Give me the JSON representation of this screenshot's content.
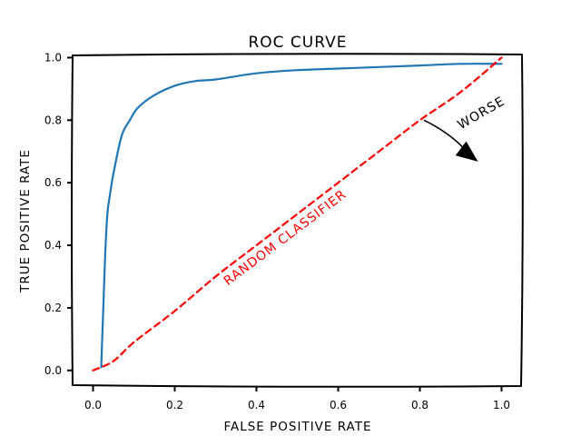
{
  "chart_data": {
    "type": "line",
    "title": "ROC CURVE",
    "xlabel": "FALSE POSITIVE RATE",
    "ylabel": "TRUE POSITIVE RATE",
    "xlim": [
      -0.05,
      1.05
    ],
    "ylim": [
      -0.05,
      1.01
    ],
    "grid": false,
    "x_ticks": [
      0.0,
      0.2,
      0.4,
      0.6,
      0.8,
      1.0
    ],
    "x_tick_labels": [
      "0.0",
      "0.2",
      "0.4",
      "0.6",
      "0.8",
      "1.0"
    ],
    "y_ticks": [
      0.0,
      0.2,
      0.4,
      0.6,
      0.8,
      1.0
    ],
    "y_tick_labels": [
      "0.0",
      "0.2",
      "0.4",
      "0.6",
      "0.8",
      "1.0"
    ],
    "series": [
      {
        "style": "solid",
        "color": "#1f77b4",
        "x": [
          0.02,
          0.025,
          0.03,
          0.035,
          0.04,
          0.05,
          0.07,
          0.09,
          0.11,
          0.15,
          0.2,
          0.25,
          0.3,
          0.4,
          0.5,
          0.6,
          0.7,
          0.8,
          0.9,
          1.0
        ],
        "y": [
          0.01,
          0.2,
          0.38,
          0.5,
          0.55,
          0.63,
          0.75,
          0.8,
          0.84,
          0.88,
          0.91,
          0.925,
          0.93,
          0.95,
          0.96,
          0.965,
          0.97,
          0.975,
          0.98,
          0.98
        ]
      },
      {
        "style": "dashed",
        "color": "#ff0000",
        "x": [
          0.0,
          0.05,
          0.1,
          0.2,
          0.3,
          0.4,
          0.5,
          0.6,
          0.7,
          0.8,
          0.9,
          1.0
        ],
        "y": [
          0.0,
          0.03,
          0.09,
          0.19,
          0.3,
          0.4,
          0.5,
          0.6,
          0.7,
          0.8,
          0.89,
          1.0
        ]
      }
    ],
    "annotations": [
      {
        "text": "RANDOM CLASSIFIER",
        "x": 0.33,
        "y": 0.27,
        "color": "#ff0000",
        "rotation_deg": -37
      },
      {
        "text": "WORSE",
        "x": 0.9,
        "y": 0.77,
        "color": "#000000",
        "rotation_deg": -30,
        "arrow": {
          "from": [
            0.81,
            0.8
          ],
          "to": [
            0.94,
            0.67
          ]
        }
      }
    ]
  }
}
